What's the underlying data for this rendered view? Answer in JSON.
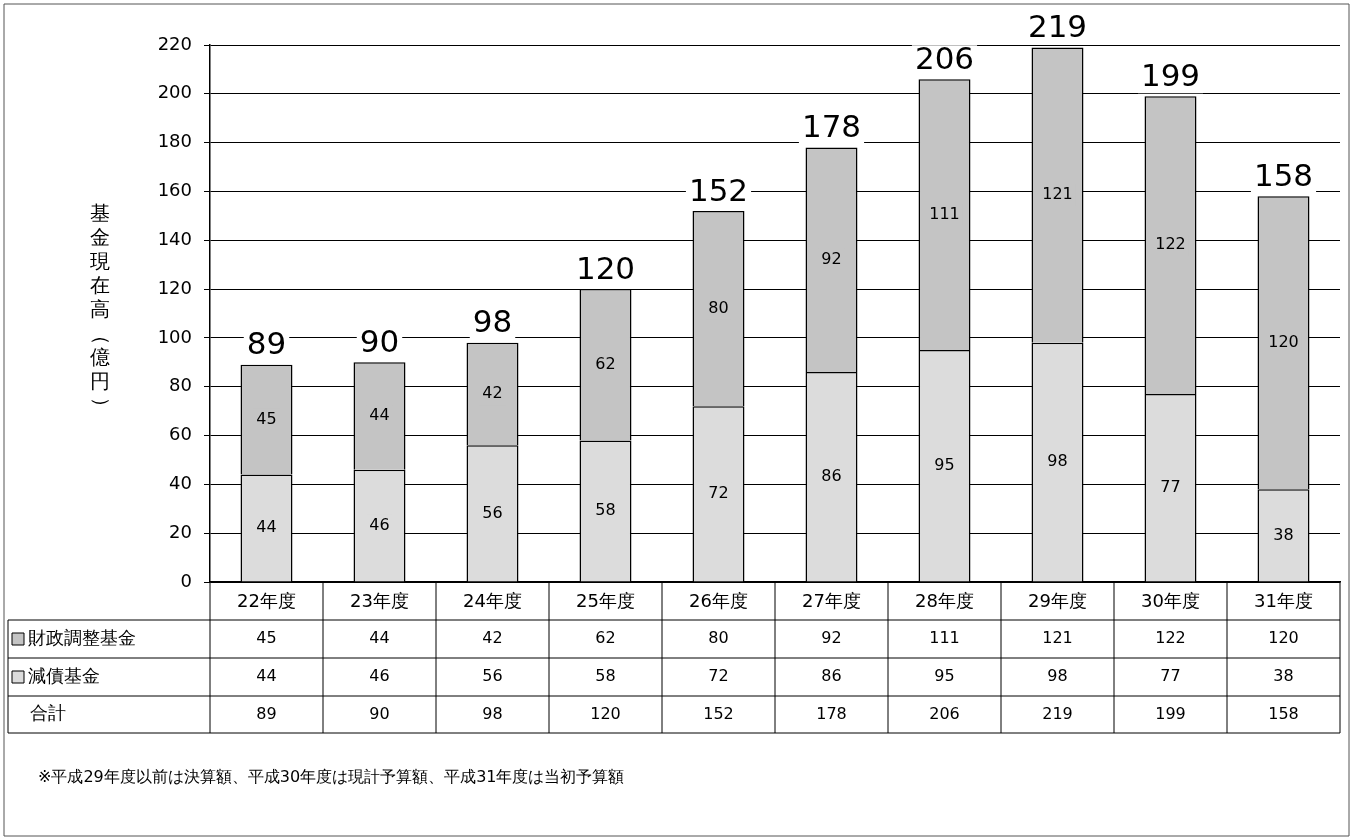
{
  "chart_data": {
    "type": "bar",
    "stacked": true,
    "ylabel": "基金現在高（億円）",
    "categories": [
      "22年度",
      "23年度",
      "24年度",
      "25年度",
      "26年度",
      "27年度",
      "28年度",
      "29年度",
      "30年度",
      "31年度"
    ],
    "series": [
      {
        "name": "減債基金",
        "color": "#dcdcdc",
        "values": [
          44,
          46,
          56,
          58,
          72,
          86,
          95,
          98,
          77,
          38
        ],
        "value_labels": [
          "44",
          "46",
          "56",
          "58",
          "72",
          "86",
          "95",
          "98",
          "77",
          "38"
        ]
      },
      {
        "name": "財政調整基金",
        "color": "#c4c4c4",
        "values": [
          45,
          44,
          42,
          62,
          80,
          92,
          111,
          121,
          122,
          120
        ],
        "value_labels": [
          "45",
          "44",
          "42",
          "62",
          "80",
          "92",
          "111",
          "121",
          "122",
          "120"
        ]
      }
    ],
    "totals": [
      "89",
      "90",
      "98",
      "120",
      "152",
      "178",
      "206",
      "219",
      "199",
      "158"
    ],
    "ylim": [
      0,
      220
    ],
    "yticks": [
      0,
      20,
      40,
      60,
      80,
      100,
      120,
      140,
      160,
      180,
      200,
      220
    ],
    "grid": "y",
    "data_labels": true,
    "legend": "bottom",
    "annotations": [
      "合計",
      "※平成29年度以前は決算額、平成30年度は現計予算額、平成31年度は当初予算額"
    ]
  }
}
